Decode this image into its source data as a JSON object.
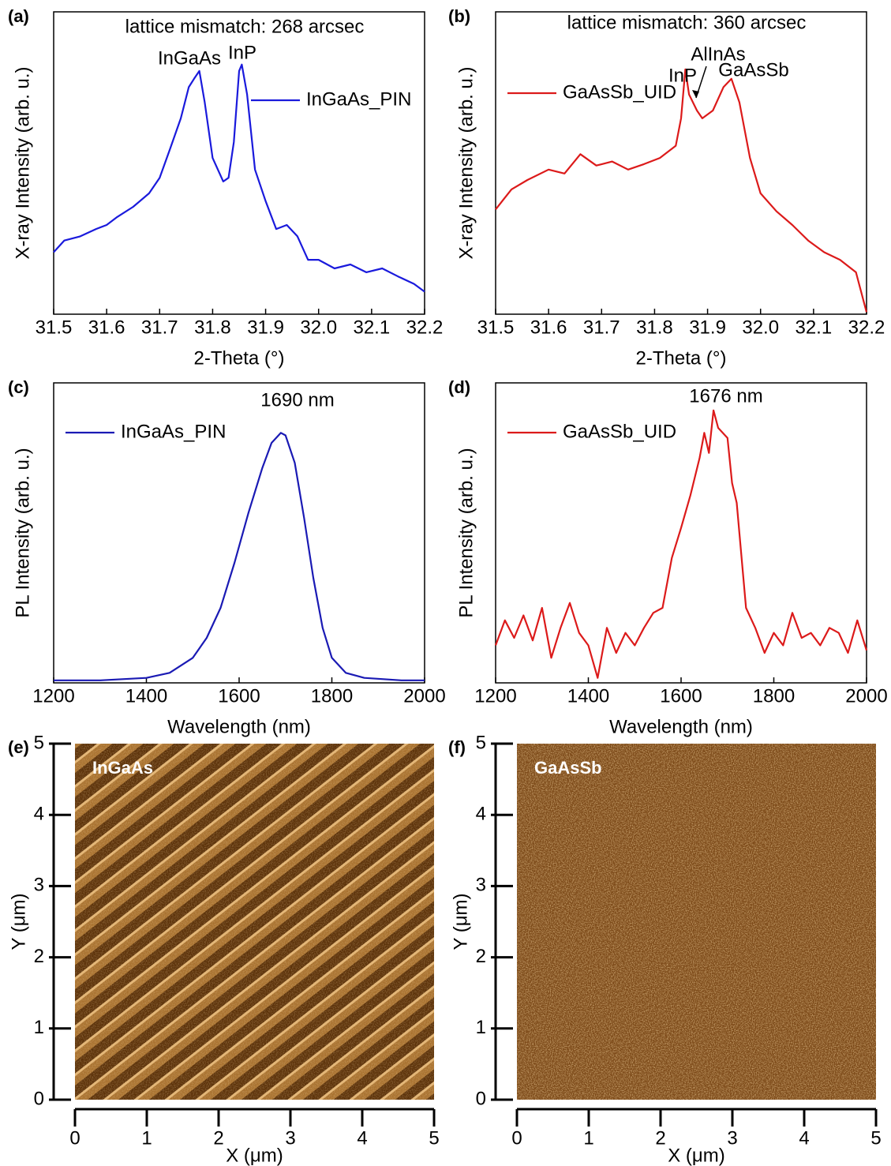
{
  "chart_data": [
    {
      "type": "line",
      "panel_label": "(a)",
      "xlabel": "2-Theta (°)",
      "ylabel": "X-ray Intensity (arb. u.)",
      "annotations": [
        "lattice mismatch: 268 arcsec",
        "InGaAs",
        "InP"
      ],
      "xlim": [
        31.5,
        32.2
      ],
      "xticks": [
        31.5,
        31.6,
        31.7,
        31.8,
        31.9,
        {
          "value": 32,
          "label": "32.0"
        },
        32.1,
        32.2
      ],
      "ylim": [
        1,
        1000000
      ],
      "yscale": "log",
      "legend": "upper right",
      "x": [
        31.5,
        31.52,
        31.55,
        31.58,
        31.6,
        31.62,
        31.65,
        31.68,
        31.7,
        31.72,
        31.74,
        31.755,
        31.765,
        31.775,
        31.785,
        31.8,
        31.82,
        31.83,
        31.84,
        31.85,
        31.855,
        31.865,
        31.88,
        31.9,
        31.92,
        31.94,
        31.96,
        31.98,
        32.0,
        32.03,
        32.06,
        32.09,
        32.12,
        32.15,
        32.18,
        32.2
      ],
      "series": [
        {
          "name": "InGaAs_PIN",
          "color": "#1a1adc",
          "values": [
            17,
            29,
            35,
            49,
            59,
            85,
            135,
            250,
            510,
            1950,
            7700,
            32000,
            47000,
            67000,
            16000,
            1260,
            430,
            510,
            2600,
            67000,
            90000,
            23000,
            740,
            175,
            49,
            59,
            35,
            12,
            12,
            8.1,
            9.7,
            6.8,
            8.1,
            5.6,
            4.0,
            2.8
          ]
        }
      ]
    },
    {
      "type": "line",
      "panel_label": "(b)",
      "xlabel": "2-Theta (°)",
      "ylabel": "X-ray Intensity (arb. u.)",
      "annotations": [
        "lattice mismatch: 360 arcsec",
        "InP",
        "AlInAs",
        "GaAsSb"
      ],
      "xlim": [
        31.5,
        32.2
      ],
      "xticks": [
        31.5,
        31.6,
        31.7,
        31.8,
        31.9,
        {
          "value": 32,
          "label": "32.0"
        },
        32.1,
        32.2
      ],
      "ylim": [
        1,
        1000000
      ],
      "yscale": "log",
      "legend": "upper left",
      "x": [
        31.5,
        31.53,
        31.56,
        31.6,
        31.63,
        31.66,
        31.69,
        31.72,
        31.75,
        31.78,
        31.81,
        31.84,
        31.85,
        31.858,
        31.865,
        31.88,
        31.89,
        31.91,
        31.93,
        31.945,
        31.96,
        31.98,
        32.0,
        32.03,
        32.06,
        32.09,
        32.12,
        32.15,
        32.18,
        32.2
      ],
      "series": [
        {
          "name": "GaAsSb_UID",
          "color": "#dc1a1a",
          "values": [
            120,
            300,
            460,
            740,
            620,
            1500,
            890,
            1070,
            740,
            950,
            1260,
            2200,
            7700,
            72000,
            23000,
            11000,
            7700,
            11000,
            32000,
            47000,
            16000,
            1260,
            250,
            110,
            59,
            29,
            17,
            12,
            6.8,
            1.1
          ]
        }
      ]
    },
    {
      "type": "line",
      "panel_label": "(c)",
      "xlabel": "Wavelength (nm)",
      "ylabel": "PL Intensity (arb. u.)",
      "annotations": [
        "1690 nm"
      ],
      "xlim": [
        1200,
        2000
      ],
      "xticks": [
        1200,
        1400,
        1600,
        1800,
        2000
      ],
      "ylim": [
        0,
        1.2
      ],
      "legend": "upper left",
      "x": [
        1200,
        1300,
        1400,
        1450,
        1500,
        1530,
        1560,
        1590,
        1620,
        1650,
        1670,
        1690,
        1700,
        1720,
        1740,
        1760,
        1780,
        1800,
        1830,
        1870,
        1950,
        2000
      ],
      "series": [
        {
          "name": "InGaAs_PIN",
          "color": "#1a1ab4",
          "values": [
            0.01,
            0.01,
            0.02,
            0.04,
            0.1,
            0.18,
            0.3,
            0.48,
            0.68,
            0.86,
            0.96,
            1.0,
            0.99,
            0.88,
            0.66,
            0.42,
            0.22,
            0.1,
            0.04,
            0.02,
            0.01,
            0.01
          ]
        }
      ]
    },
    {
      "type": "line",
      "panel_label": "(d)",
      "xlabel": "Wavelength (nm)",
      "ylabel": "PL Intensity (arb. u.)",
      "annotations": [
        "1676 nm"
      ],
      "xlim": [
        1200,
        2000
      ],
      "xticks": [
        1200,
        1400,
        1600,
        1800,
        2000
      ],
      "ylim": [
        0,
        1.2
      ],
      "legend": "upper left",
      "x": [
        1200,
        1220,
        1240,
        1260,
        1280,
        1300,
        1320,
        1340,
        1360,
        1380,
        1400,
        1420,
        1440,
        1460,
        1480,
        1500,
        1520,
        1540,
        1560,
        1580,
        1600,
        1620,
        1640,
        1650,
        1660,
        1670,
        1680,
        1700,
        1710,
        1720,
        1740,
        1760,
        1780,
        1800,
        1820,
        1840,
        1860,
        1880,
        1900,
        1920,
        1940,
        1960,
        1980,
        2000
      ],
      "series": [
        {
          "name": "GaAsSb_UID",
          "color": "#dc1a1a",
          "values": [
            0.15,
            0.25,
            0.18,
            0.27,
            0.17,
            0.3,
            0.1,
            0.22,
            0.32,
            0.2,
            0.15,
            0.02,
            0.22,
            0.12,
            0.2,
            0.15,
            0.22,
            0.28,
            0.3,
            0.5,
            0.62,
            0.75,
            0.9,
            1.0,
            0.92,
            1.09,
            1.02,
            0.98,
            0.8,
            0.72,
            0.3,
            0.22,
            0.12,
            0.2,
            0.15,
            0.28,
            0.18,
            0.2,
            0.15,
            0.22,
            0.2,
            0.12,
            0.25,
            0.13
          ]
        }
      ]
    },
    {
      "type": "image",
      "panel_label": "(e)",
      "label": "InGaAs",
      "xlabel": "X (μm)",
      "ylabel": "Y (μm)",
      "xlim": [
        0,
        5
      ],
      "xticks": [
        0,
        1,
        2,
        3,
        4,
        5
      ],
      "ylim": [
        0,
        5
      ],
      "yticks": [
        0,
        1,
        2,
        3,
        4,
        5
      ]
    },
    {
      "type": "image",
      "panel_label": "(f)",
      "label": "GaAsSb",
      "xlabel": "X (μm)",
      "ylabel": "Y (μm)",
      "xlim": [
        0,
        5
      ],
      "xticks": [
        0,
        1,
        2,
        3,
        4,
        5
      ],
      "ylim": [
        0,
        5
      ],
      "yticks": [
        0,
        1,
        2,
        3,
        4,
        5
      ]
    }
  ]
}
